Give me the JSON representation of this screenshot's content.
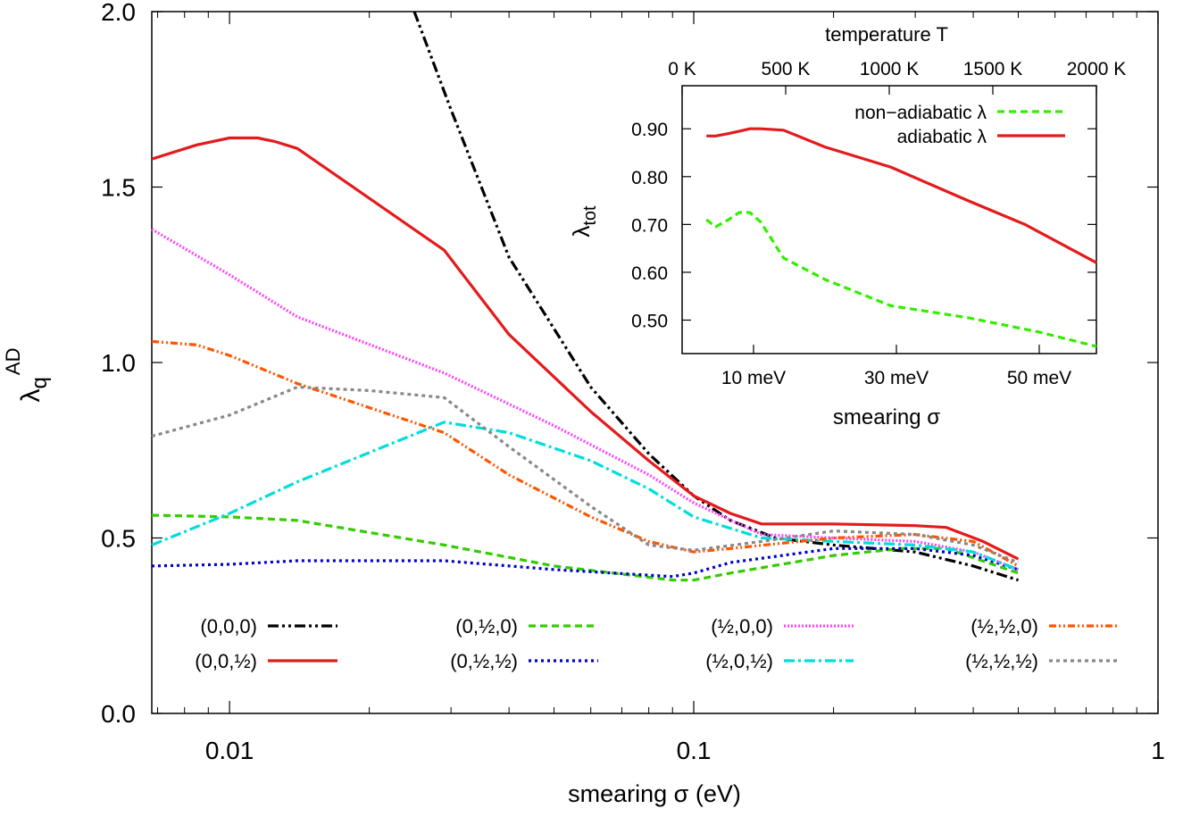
{
  "chart_data": [
    {
      "type": "line",
      "xscale": "log",
      "xlim": [
        0.0068,
        1
      ],
      "ylim": [
        0,
        2
      ],
      "xlabel": "smearing σ (eV)",
      "ylabel_main": "λ",
      "ylabel_sub": "q",
      "ylabel_sup": "AD",
      "x_ticks": [
        {
          "value": 0.01,
          "label": "0.01"
        },
        {
          "value": 0.1,
          "label": "0.1"
        },
        {
          "value": 1,
          "label": "1"
        }
      ],
      "y_ticks": [
        {
          "value": 0,
          "label": "0.0"
        },
        {
          "value": 0.5,
          "label": "0.5"
        },
        {
          "value": 1.0,
          "label": "1.0"
        },
        {
          "value": 1.5,
          "label": "1.5"
        },
        {
          "value": 2.0,
          "label": "2.0"
        }
      ],
      "legend_placement": "bottom, 4 columns",
      "series": [
        {
          "name": "(0,0,0)",
          "color": "#000000",
          "dash": "12,4,3,4,3,4",
          "x": [
            0.025,
            0.03,
            0.04,
            0.06,
            0.08,
            0.1,
            0.12,
            0.15,
            0.2,
            0.3,
            0.4,
            0.5
          ],
          "y": [
            2.0,
            1.72,
            1.3,
            0.93,
            0.74,
            0.62,
            0.55,
            0.5,
            0.48,
            0.46,
            0.42,
            0.38
          ]
        },
        {
          "name": "(0,0,½)",
          "color": "#e41a1c",
          "dash": "",
          "x": [
            0.0068,
            0.0085,
            0.01,
            0.0115,
            0.0125,
            0.014,
            0.029,
            0.04,
            0.06,
            0.08,
            0.1,
            0.12,
            0.14,
            0.2,
            0.3,
            0.35,
            0.42,
            0.5
          ],
          "y": [
            1.58,
            1.62,
            1.64,
            1.64,
            1.63,
            1.61,
            1.32,
            1.08,
            0.86,
            0.72,
            0.62,
            0.57,
            0.54,
            0.54,
            0.535,
            0.53,
            0.49,
            0.44
          ]
        },
        {
          "name": "(0,½,0)",
          "color": "#33cc00",
          "dash": "8,5",
          "x": [
            0.0068,
            0.01,
            0.014,
            0.029,
            0.05,
            0.09,
            0.1,
            0.12,
            0.2,
            0.28,
            0.35,
            0.5
          ],
          "y": [
            0.565,
            0.56,
            0.55,
            0.48,
            0.42,
            0.38,
            0.38,
            0.4,
            0.45,
            0.47,
            0.47,
            0.4
          ]
        },
        {
          "name": "(0,½,½)",
          "color": "#0000cc",
          "dash": "3,4",
          "x": [
            0.0068,
            0.01,
            0.014,
            0.029,
            0.05,
            0.09,
            0.1,
            0.12,
            0.2,
            0.3,
            0.4,
            0.5
          ],
          "y": [
            0.42,
            0.425,
            0.435,
            0.435,
            0.41,
            0.39,
            0.4,
            0.43,
            0.47,
            0.47,
            0.45,
            0.41
          ]
        },
        {
          "name": "(½,0,0)",
          "color": "#ff44ff",
          "dash": "2,2",
          "x": [
            0.0068,
            0.01,
            0.014,
            0.029,
            0.05,
            0.08,
            0.1,
            0.14,
            0.2,
            0.3,
            0.4,
            0.5
          ],
          "y": [
            1.38,
            1.25,
            1.13,
            0.97,
            0.82,
            0.68,
            0.6,
            0.51,
            0.5,
            0.49,
            0.46,
            0.41
          ]
        },
        {
          "name": "(½,0,½)",
          "color": "#00dddd",
          "dash": "12,4,3,4",
          "x": [
            0.0068,
            0.01,
            0.014,
            0.029,
            0.04,
            0.06,
            0.08,
            0.1,
            0.14,
            0.2,
            0.3,
            0.4,
            0.5
          ],
          "y": [
            0.48,
            0.57,
            0.66,
            0.83,
            0.8,
            0.72,
            0.64,
            0.56,
            0.5,
            0.49,
            0.48,
            0.46,
            0.41
          ]
        },
        {
          "name": "(½,½,0)",
          "color": "#ff5500",
          "dash": "8,3,2,3,2,3",
          "x": [
            0.0068,
            0.0085,
            0.01,
            0.014,
            0.029,
            0.04,
            0.06,
            0.08,
            0.1,
            0.12,
            0.2,
            0.3,
            0.4,
            0.5
          ],
          "y": [
            1.06,
            1.05,
            1.02,
            0.94,
            0.8,
            0.68,
            0.56,
            0.49,
            0.46,
            0.47,
            0.5,
            0.51,
            0.49,
            0.42
          ]
        },
        {
          "name": "(½,½,½)",
          "color": "#888888",
          "dash": "4,4",
          "x": [
            0.0068,
            0.01,
            0.014,
            0.02,
            0.029,
            0.04,
            0.06,
            0.08,
            0.1,
            0.14,
            0.2,
            0.3,
            0.4,
            0.5
          ],
          "y": [
            0.79,
            0.85,
            0.93,
            0.92,
            0.9,
            0.76,
            0.59,
            0.48,
            0.465,
            0.49,
            0.52,
            0.51,
            0.48,
            0.43
          ]
        }
      ]
    },
    {
      "type": "line",
      "inset": true,
      "xlabel": "smearing σ",
      "x2label": "temperature T",
      "ylabel_main": "λ",
      "ylabel_sub": "tot",
      "xlim": [
        0,
        58
      ],
      "ylim": [
        0.43,
        0.99
      ],
      "x_ticks": [
        {
          "value": 10,
          "label": "10 meV"
        },
        {
          "value": 30,
          "label": "30 meV"
        },
        {
          "value": 50,
          "label": "50 meV"
        }
      ],
      "x2_ticks": [
        {
          "value": 0,
          "label": "0 K"
        },
        {
          "value": 14.5,
          "label": "500 K"
        },
        {
          "value": 29,
          "label": "1000 K"
        },
        {
          "value": 43.5,
          "label": "1500 K"
        },
        {
          "value": 58,
          "label": "2000 K"
        }
      ],
      "y_ticks": [
        {
          "value": 0.5,
          "label": "0.50"
        },
        {
          "value": 0.6,
          "label": "0.60"
        },
        {
          "value": 0.7,
          "label": "0.70"
        },
        {
          "value": 0.8,
          "label": "0.80"
        },
        {
          "value": 0.9,
          "label": "0.90"
        }
      ],
      "legend_placement": "top-right",
      "series": [
        {
          "name": "non−adiabatic λ",
          "color": "#33ee00",
          "dash": "8,5",
          "x": [
            3.4,
            4.7,
            6.5,
            8,
            9.5,
            11,
            14.2,
            20,
            29.2,
            40,
            50,
            58
          ],
          "y": [
            0.71,
            0.695,
            0.71,
            0.725,
            0.725,
            0.705,
            0.63,
            0.585,
            0.53,
            0.505,
            0.475,
            0.445
          ]
        },
        {
          "name": "adiabatic λ",
          "color": "#e41a1c",
          "dash": "",
          "x": [
            3.4,
            4.7,
            6.5,
            8,
            9.5,
            11,
            14.2,
            20,
            29.2,
            40,
            48,
            58
          ],
          "y": [
            0.885,
            0.885,
            0.89,
            0.895,
            0.9,
            0.9,
            0.897,
            0.862,
            0.82,
            0.75,
            0.7,
            0.62
          ]
        }
      ]
    }
  ]
}
